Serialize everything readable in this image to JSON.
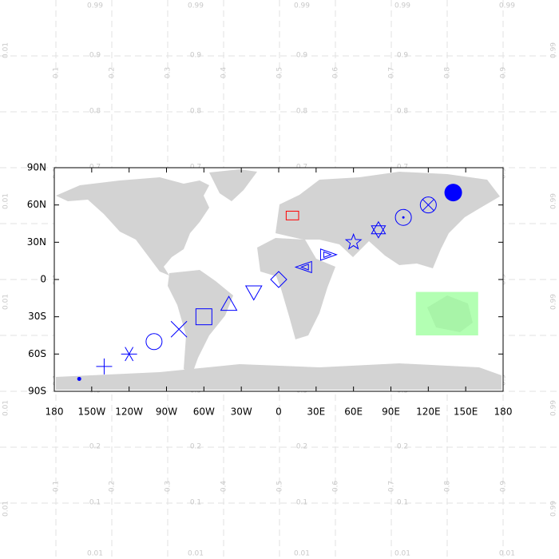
{
  "ndc_grid": {
    "lines": [
      0.1,
      0.2,
      0.3,
      0.4,
      0.5,
      0.6,
      0.7,
      0.8,
      0.9
    ],
    "low": 0.01,
    "high": 0.99
  },
  "chart_data": {
    "type": "map",
    "xlim": [
      -180,
      180
    ],
    "ylim": [
      -90,
      90
    ],
    "xticks": [
      {
        "value": -180,
        "label": "180"
      },
      {
        "value": -150,
        "label": "150W"
      },
      {
        "value": -120,
        "label": "120W"
      },
      {
        "value": -90,
        "label": "90W"
      },
      {
        "value": -60,
        "label": "60W"
      },
      {
        "value": -30,
        "label": "30W"
      },
      0,
      {
        "value": 30,
        "label": "30E"
      },
      {
        "value": 60,
        "label": "60E"
      },
      {
        "value": 90,
        "label": "90E"
      },
      {
        "value": 120,
        "label": "120E"
      },
      {
        "value": 150,
        "label": "150E"
      },
      {
        "value": 180,
        "label": "180"
      }
    ],
    "yticks": [
      {
        "value": -90,
        "label": "90S"
      },
      {
        "value": -60,
        "label": "60S"
      },
      {
        "value": -30,
        "label": "30S"
      },
      0,
      {
        "value": 30,
        "label": "30N"
      },
      {
        "value": 60,
        "label": "60N"
      },
      {
        "value": 90,
        "label": "90N"
      }
    ],
    "marker_color": "#0000ff",
    "markers": [
      {
        "lon": -160,
        "lat": -80,
        "shape": "dot"
      },
      {
        "lon": -140,
        "lat": -70,
        "shape": "plus"
      },
      {
        "lon": -120,
        "lat": -60,
        "shape": "asterisk"
      },
      {
        "lon": -100,
        "lat": -50,
        "shape": "circle"
      },
      {
        "lon": -80,
        "lat": -40,
        "shape": "cross"
      },
      {
        "lon": -60,
        "lat": -30,
        "shape": "square"
      },
      {
        "lon": -40,
        "lat": -20,
        "shape": "triangle-up"
      },
      {
        "lon": -20,
        "lat": -10,
        "shape": "triangle-down"
      },
      {
        "lon": 0,
        "lat": 0,
        "shape": "diamond"
      },
      {
        "lon": 20,
        "lat": 10,
        "shape": "double-triangle-left"
      },
      {
        "lon": 40,
        "lat": 20,
        "shape": "double-triangle-right"
      },
      {
        "lon": 60,
        "lat": 30,
        "shape": "star"
      },
      {
        "lon": 80,
        "lat": 40,
        "shape": "hexagram"
      },
      {
        "lon": 100,
        "lat": 50,
        "shape": "circle-dot"
      },
      {
        "lon": 120,
        "lat": 60,
        "shape": "circle-cross"
      },
      {
        "lon": 140,
        "lat": 70,
        "shape": "filled-circle"
      }
    ],
    "boxes": [
      {
        "lon": [
          6,
          16
        ],
        "lat": [
          48,
          55
        ],
        "edge": "#ff0000"
      },
      {
        "lon": [
          110,
          160
        ],
        "lat": [
          -45,
          -10
        ],
        "fill": "#99ff99"
      }
    ]
  }
}
